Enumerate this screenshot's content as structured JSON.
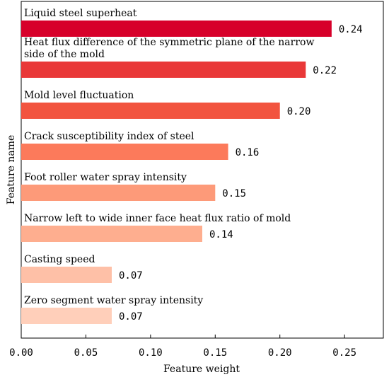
{
  "chart_data": {
    "type": "bar",
    "orientation": "horizontal",
    "xlabel": "Feature weight",
    "ylabel": "Feature name",
    "xlim": [
      0,
      0.28
    ],
    "xticks": [
      "0.00",
      "0.05",
      "0.10",
      "0.15",
      "0.20",
      "0.25"
    ],
    "grid": false,
    "bars": [
      {
        "category": [
          "Liquid steel superheat"
        ],
        "value": 0.24,
        "value_label": "0.24",
        "color": "#d7002a"
      },
      {
        "category": [
          "Heat flux difference of the symmetric plane of the narrow",
          "side of the mold"
        ],
        "value": 0.22,
        "value_label": "0.22",
        "color": "#e93838"
      },
      {
        "category": [
          "Mold level fluctuation"
        ],
        "value": 0.2,
        "value_label": "0.20",
        "color": "#f2543f"
      },
      {
        "category": [
          "Crack susceptibility index of steel"
        ],
        "value": 0.16,
        "value_label": "0.16",
        "color": "#fc7a5b"
      },
      {
        "category": [
          "Foot roller water spray intensity"
        ],
        "value": 0.15,
        "value_label": "0.15",
        "color": "#fd9a79"
      },
      {
        "category": [
          "Narrow left to wide inner face heat flux ratio of mold"
        ],
        "value": 0.14,
        "value_label": "0.14",
        "color": "#feae8f"
      },
      {
        "category": [
          "Casting speed"
        ],
        "value": 0.07,
        "value_label": "0.07",
        "color": "#fec0a7"
      },
      {
        "category": [
          "Zero segment water spray intensity"
        ],
        "value": 0.07,
        "value_label": "0.07",
        "color": "#ffcfba"
      }
    ]
  }
}
